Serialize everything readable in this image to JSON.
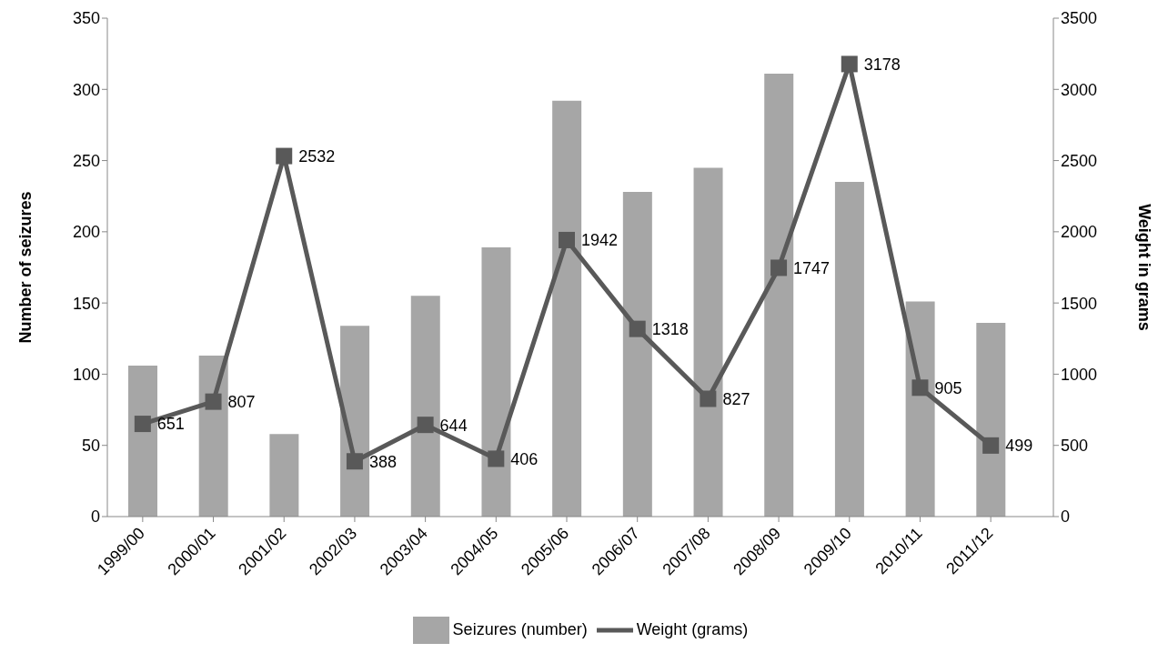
{
  "chart_data": {
    "type": "bar",
    "categories": [
      "1999/00",
      "2000/01",
      "2001/02",
      "2002/03",
      "2003/04",
      "2004/05",
      "2005/06",
      "2006/07",
      "2007/08",
      "2008/09",
      "2009/10",
      "2010/11",
      "2011/12"
    ],
    "series": [
      {
        "name": "Seizures (number)",
        "color": "#a6a6a6",
        "values": [
          106,
          113,
          58,
          134,
          155,
          189,
          292,
          228,
          245,
          311,
          235,
          151,
          136
        ]
      },
      {
        "name": "Weight (grams)",
        "type": "line",
        "axis": "y2",
        "color": "#595959",
        "marker": "square",
        "data_labels": true,
        "values": [
          651,
          807,
          2532,
          388,
          644,
          406,
          1942,
          1318,
          827,
          1747,
          3178,
          905,
          499
        ]
      }
    ],
    "ylabel": "Number of seizures",
    "y2label": "Weight in grams",
    "ylim": [
      0,
      350
    ],
    "yticks": [
      0,
      50,
      100,
      150,
      200,
      250,
      300,
      350
    ],
    "y2lim": [
      0,
      3500
    ],
    "y2ticks": [
      0,
      500,
      1000,
      1500,
      2000,
      2500,
      3000,
      3500
    ],
    "grid": false,
    "legend": "bottom"
  }
}
